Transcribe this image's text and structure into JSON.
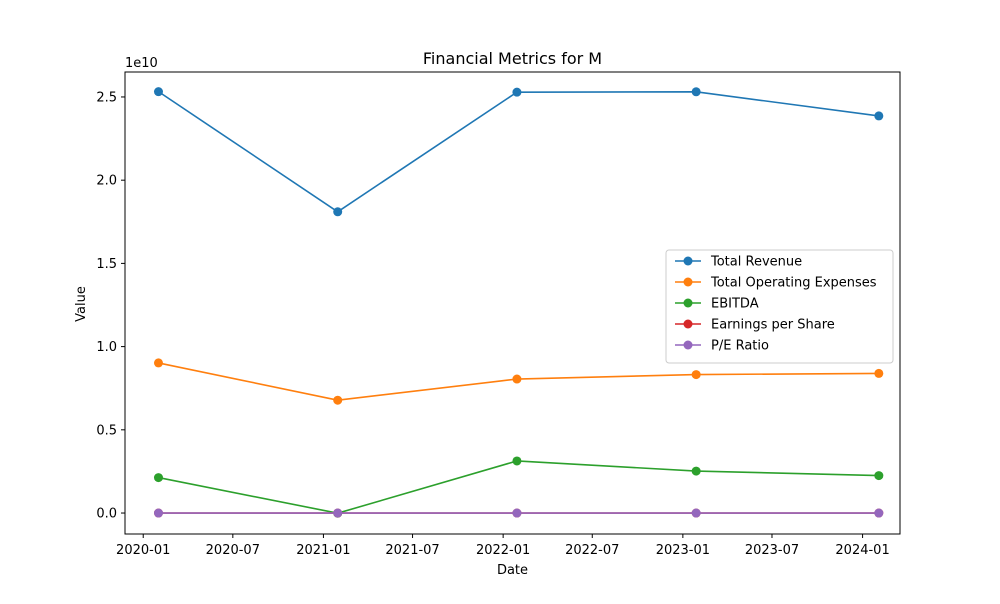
{
  "chart_data": {
    "type": "line",
    "title": "Financial Metrics for M",
    "xlabel": "Date",
    "ylabel": "Value",
    "y_offset_label": "1e10",
    "x_ticks": [
      "2020-01",
      "2020-07",
      "2021-01",
      "2021-07",
      "2022-01",
      "2022-07",
      "2023-01",
      "2023-07",
      "2024-01"
    ],
    "y_ticks": [
      "0.0",
      "0.5",
      "1.0",
      "1.5",
      "2.0",
      "2.5"
    ],
    "y_tick_values": [
      0.0,
      0.5,
      1.0,
      1.5,
      2.0,
      2.5
    ],
    "ylim": [
      -0.126,
      2.65
    ],
    "xlim": [
      "2019-11-25",
      "2024-03-17"
    ],
    "x": [
      "2020-02-01",
      "2021-01-30",
      "2022-01-29",
      "2023-01-28",
      "2024-02-03"
    ],
    "y_scale_note": "values in units of 1e10",
    "grid": false,
    "legend_position": "center-right",
    "series": [
      {
        "name": "Total Revenue",
        "color": "#1f77b4",
        "values": [
          2.532,
          1.81,
          2.529,
          2.531,
          2.386
        ]
      },
      {
        "name": "Total Operating Expenses",
        "color": "#ff7f0e",
        "values": [
          0.902,
          0.678,
          0.805,
          0.832,
          0.839
        ]
      },
      {
        "name": "EBITDA",
        "color": "#2ca02c",
        "values": [
          0.213,
          -0.001,
          0.313,
          0.252,
          0.225
        ]
      },
      {
        "name": "Earnings per Share",
        "color": "#d62728",
        "values": [
          0.0,
          0.0,
          0.0,
          0.0,
          0.0
        ]
      },
      {
        "name": "P/E Ratio",
        "color": "#9467bd",
        "values": [
          0.0,
          0.0,
          0.0,
          0.0,
          0.0
        ]
      }
    ]
  }
}
